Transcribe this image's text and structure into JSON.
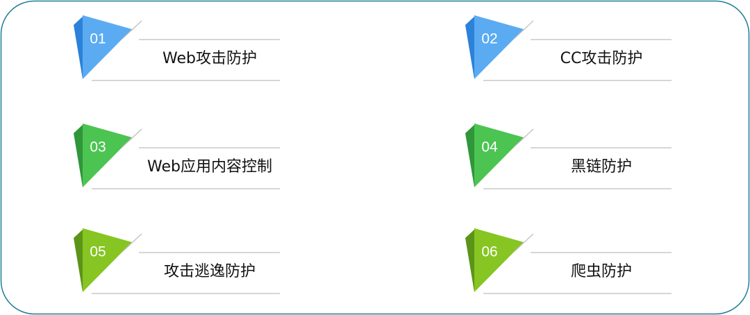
{
  "items": [
    {
      "number": "01",
      "label": "Web攻击防护"
    },
    {
      "number": "02",
      "label": "CC攻击防护"
    },
    {
      "number": "03",
      "label": "Web应用内容控制"
    },
    {
      "number": "04",
      "label": "黑链防护"
    },
    {
      "number": "05",
      "label": "攻击逃逸防护"
    },
    {
      "number": "06",
      "label": "爬虫防护"
    }
  ]
}
